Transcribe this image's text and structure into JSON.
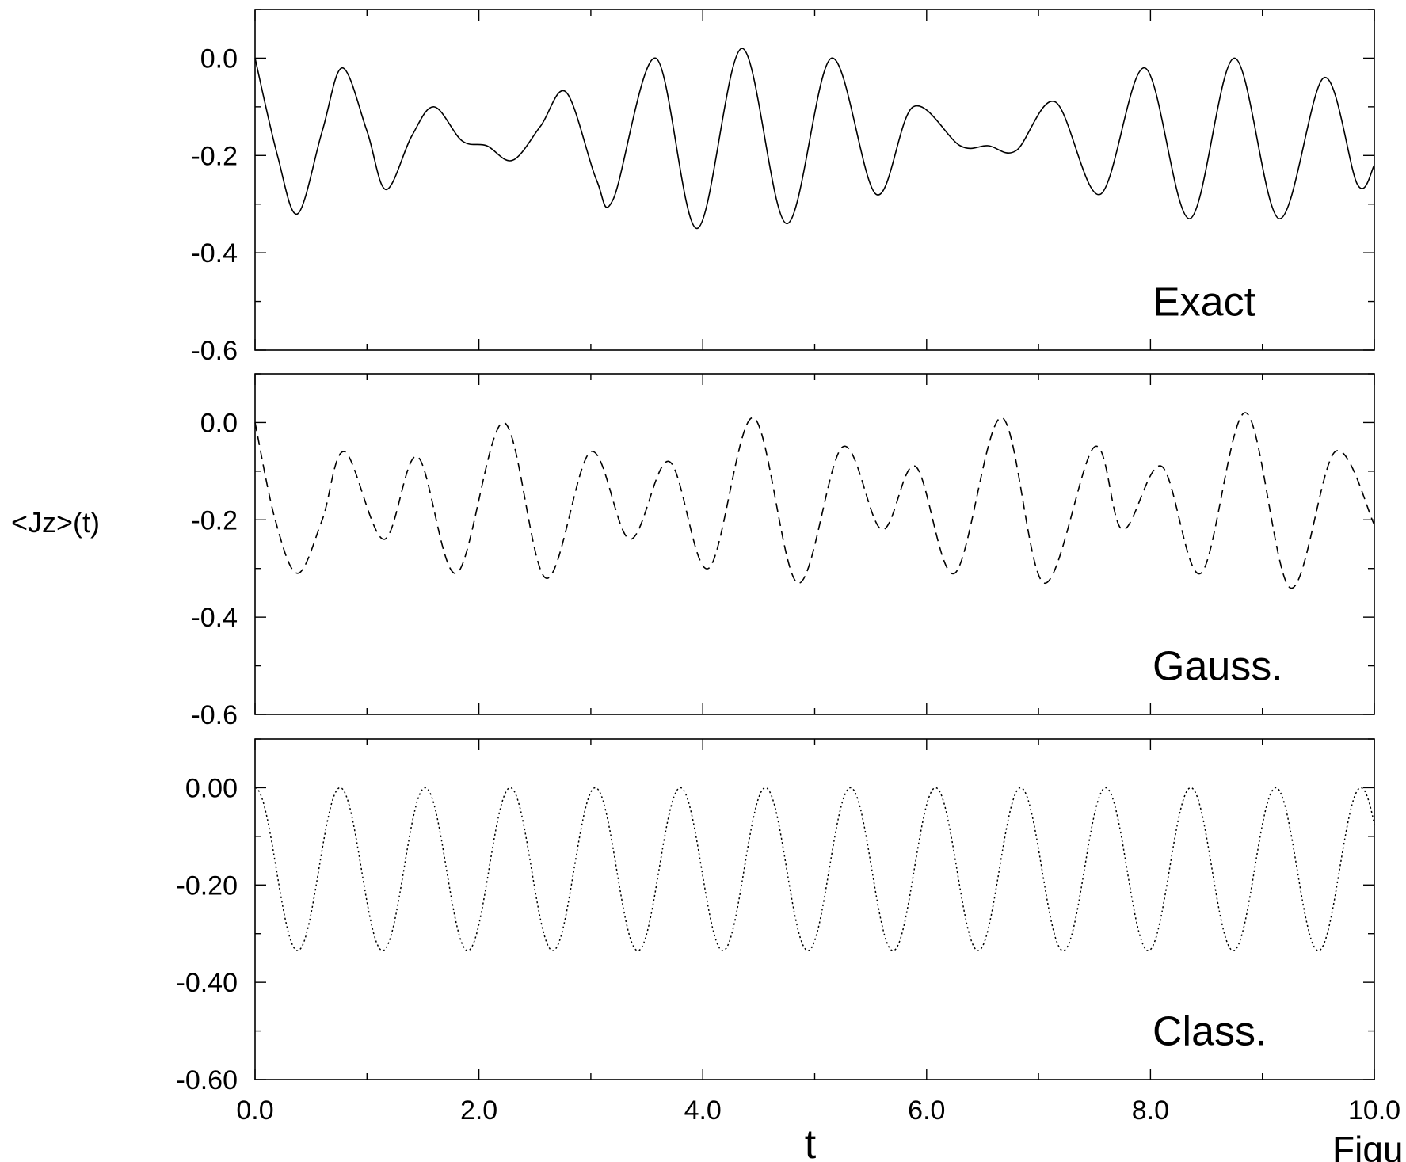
{
  "figure": {
    "ylabel": "<Jz>(t)",
    "xlabel": "t",
    "caption": "Figu",
    "x_tick_labels": [
      "0.0",
      "2.0",
      "4.0",
      "6.0",
      "8.0",
      "10.0"
    ]
  },
  "chart_data": [
    {
      "type": "line",
      "label": "Exact",
      "line_style": "solid",
      "xlim": [
        0,
        10
      ],
      "ylim": [
        -0.6,
        0.1
      ],
      "y_tick_labels": [
        "0.0",
        "-0.2",
        "-0.4",
        "-0.6"
      ],
      "y_ticks": [
        0.0,
        -0.2,
        -0.4,
        -0.6
      ],
      "series": [
        {
          "x": [
            0,
            0.2,
            0.38,
            0.6,
            0.78,
            1.0,
            1.17,
            1.4,
            1.6,
            1.85,
            2.07,
            2.3,
            2.55,
            2.78,
            3.05,
            3.2,
            3.58,
            3.95,
            4.35,
            4.75,
            5.15,
            5.55,
            5.88,
            6.3,
            6.55,
            6.8,
            7.15,
            7.55,
            7.95,
            8.35,
            8.75,
            9.15,
            9.55,
            9.85,
            10.0
          ],
          "y": [
            0.0,
            -0.2,
            -0.32,
            -0.15,
            -0.02,
            -0.15,
            -0.27,
            -0.16,
            -0.1,
            -0.17,
            -0.18,
            -0.21,
            -0.14,
            -0.07,
            -0.25,
            -0.29,
            0.0,
            -0.35,
            0.02,
            -0.34,
            0.0,
            -0.28,
            -0.1,
            -0.18,
            -0.18,
            -0.19,
            -0.09,
            -0.28,
            -0.02,
            -0.33,
            0.0,
            -0.33,
            -0.04,
            -0.26,
            -0.22
          ]
        }
      ]
    },
    {
      "type": "line",
      "label": "Gauss.",
      "line_style": "dashed",
      "xlim": [
        0,
        10
      ],
      "ylim": [
        -0.6,
        0.1
      ],
      "y_tick_labels": [
        "0.0",
        "-0.2",
        "-0.4",
        "-0.6"
      ],
      "y_ticks": [
        0.0,
        -0.2,
        -0.4,
        -0.6
      ],
      "series": [
        {
          "x": [
            0,
            0.18,
            0.38,
            0.6,
            0.8,
            1.15,
            1.45,
            1.8,
            2.22,
            2.6,
            3.0,
            3.35,
            3.7,
            4.05,
            4.45,
            4.85,
            5.25,
            5.6,
            5.9,
            6.25,
            6.67,
            7.05,
            7.5,
            7.75,
            8.1,
            8.45,
            8.85,
            9.25,
            9.65,
            10.0
          ],
          "y": [
            0.0,
            -0.2,
            -0.31,
            -0.2,
            -0.06,
            -0.24,
            -0.07,
            -0.31,
            0.0,
            -0.32,
            -0.06,
            -0.24,
            -0.08,
            -0.3,
            0.01,
            -0.33,
            -0.05,
            -0.22,
            -0.09,
            -0.31,
            0.01,
            -0.33,
            -0.05,
            -0.22,
            -0.09,
            -0.31,
            0.02,
            -0.34,
            -0.06,
            -0.21
          ]
        }
      ]
    },
    {
      "type": "line",
      "label": "Class.",
      "line_style": "dotted",
      "xlim": [
        0,
        10
      ],
      "ylim": [
        -0.6,
        0.1
      ],
      "y_tick_labels": [
        "0.00",
        "-0.20",
        "-0.40",
        "-0.60"
      ],
      "y_ticks": [
        0.0,
        -0.2,
        -0.4,
        -0.6
      ],
      "series": [
        {
          "function": "y = -A*(1 - cos(2*pi*t/T))/2",
          "amplitude": 0.335,
          "period": 0.76,
          "x_range": [
            0,
            10
          ]
        }
      ]
    }
  ]
}
